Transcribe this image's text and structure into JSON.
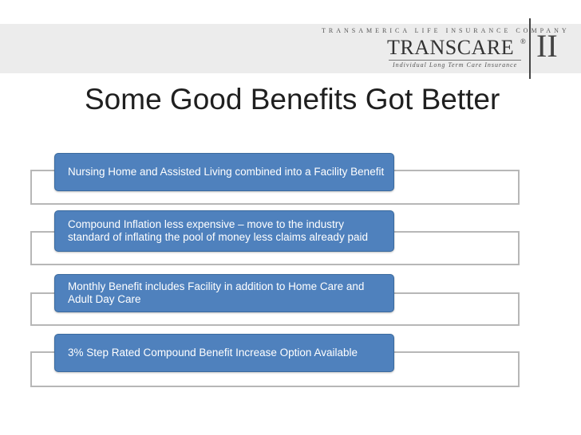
{
  "logo": {
    "company_line": "TRANSAMERICA LIFE INSURANCE COMPANY",
    "brand": "TRANSCARE",
    "registered_mark": "®",
    "tagline": "Individual Long Term Care Insurance",
    "numeral": "II"
  },
  "slide": {
    "title": "Some Good Benefits Got Better",
    "items": [
      {
        "text": "Nursing Home and Assisted Living combined into a Facility Benefit"
      },
      {
        "text": "Compound Inflation less expensive – move to the industry standard of inflating the pool of money less claims already paid"
      },
      {
        "text": "Monthly Benefit includes Facility in addition to Home Care and Adult Day Care"
      },
      {
        "text": "3% Step Rated Compound Benefit Increase Option Available"
      }
    ]
  },
  "colors": {
    "box_fill": "#4f81bd",
    "bracket_border": "#b7b7b7",
    "header_band": "#ececec"
  }
}
